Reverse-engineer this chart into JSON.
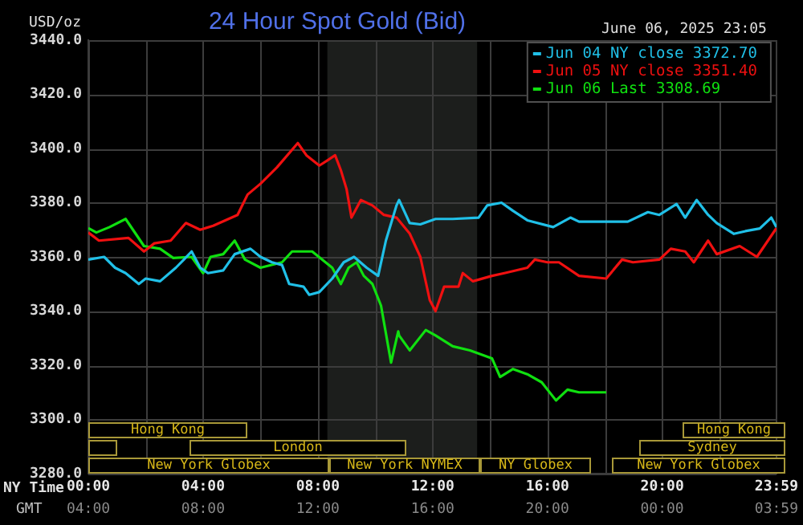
{
  "chart_data": {
    "type": "line",
    "title": "24 Hour Spot Gold (Bid)",
    "subtitle": "June 06, 2025 23:05",
    "ylabel": "USD/oz",
    "xlabel": "NY Time",
    "x2label": "GMT",
    "xlim": [
      0,
      23.98
    ],
    "ylim": [
      3280,
      3440
    ],
    "xticks": [
      {
        "value": 0,
        "label": "00:00"
      },
      {
        "value": 2,
        "label": null
      },
      {
        "value": 4,
        "label": "04:00"
      },
      {
        "value": 6,
        "label": null
      },
      {
        "value": 8,
        "label": "08:00"
      },
      {
        "value": 10,
        "label": null
      },
      {
        "value": 12,
        "label": "12:00"
      },
      {
        "value": 14,
        "label": null
      },
      {
        "value": 16,
        "label": "16:00"
      },
      {
        "value": 18,
        "label": null
      },
      {
        "value": 20,
        "label": "20:00"
      },
      {
        "value": 22,
        "label": null
      },
      {
        "value": 23.98,
        "label": "23:59"
      }
    ],
    "x2lim": [
      "2025-06-06T04:00",
      "2025-06-07T03:59"
    ],
    "x2ticks": [
      {
        "value": "2025-06-06T04:00",
        "label": "04:00"
      },
      {
        "value": "2025-06-06T08:00",
        "label": "08:00"
      },
      {
        "value": "2025-06-06T12:00",
        "label": "12:00"
      },
      {
        "value": "2025-06-06T16:00",
        "label": "16:00"
      },
      {
        "value": "2025-06-06T20:00",
        "label": "20:00"
      },
      {
        "value": "2025-06-07T00:00",
        "label": "00:00"
      },
      {
        "value": "2025-06-07T03:59",
        "label": "03:59"
      }
    ],
    "yticks": [
      {
        "value": 3280,
        "label": "3280.0"
      },
      {
        "value": 3300,
        "label": "3300.0"
      },
      {
        "value": 3320,
        "label": "3320.0"
      },
      {
        "value": 3340,
        "label": "3340.0"
      },
      {
        "value": 3360,
        "label": "3360.0"
      },
      {
        "value": 3380,
        "label": "3380.0"
      },
      {
        "value": 3400,
        "label": "3400.0"
      },
      {
        "value": 3420,
        "label": "3420.0"
      },
      {
        "value": 3440,
        "label": "3440.0"
      }
    ],
    "grid": true,
    "legend": "top right",
    "marker": "none",
    "line_style": "solid",
    "bands": [
      {
        "axis": "x",
        "from": 8.33,
        "to": 13.55,
        "label": null,
        "color": "#1c1e1c"
      }
    ],
    "annotations": [
      "Hong Kong",
      "Hong Kong",
      "London",
      "Sydney",
      "New York Globex",
      "New York NYMEX",
      "NY Globex",
      "New York Globex"
    ],
    "series": [
      {
        "name": "Jun 04 NY close 3372.70",
        "color": "#20c0e8",
        "x": [
          0,
          0.55,
          0.93,
          1.3,
          1.76,
          2,
          2.5,
          3.05,
          3.33,
          3.6,
          3.9,
          4.17,
          4.7,
          5.1,
          5.65,
          6,
          6.4,
          6.75,
          7,
          7.5,
          7.7,
          8.05,
          8.5,
          8.9,
          9.26,
          9.7,
          10.1,
          10.37,
          10.74,
          10.83,
          11.2,
          11.57,
          12.1,
          12.7,
          13.6,
          13.9,
          14.4,
          14.8,
          15.3,
          16.2,
          16.8,
          17.1,
          18.05,
          18.8,
          19.5,
          19.9,
          20.5,
          20.8,
          21.2,
          21.6,
          21.9,
          22.5,
          22.9,
          23.4,
          23.8,
          23.98
        ],
        "values": [
          3359,
          3360,
          3356,
          3354,
          3350,
          3352,
          3351,
          3356,
          3359,
          3362,
          3356,
          3354,
          3355,
          3361,
          3363,
          3360,
          3358,
          3357,
          3350,
          3349,
          3346,
          3347,
          3352,
          3358,
          3360,
          3356,
          3353,
          3366,
          3379,
          3381,
          3372.5,
          3372,
          3374,
          3374,
          3374.5,
          3379,
          3380,
          3377,
          3373.5,
          3371,
          3374.5,
          3373,
          3373,
          3373,
          3376.5,
          3375.5,
          3379.5,
          3374.5,
          3381,
          3375.5,
          3372.5,
          3368.5,
          3369.5,
          3370.5,
          3374.5,
          3371
        ]
      },
      {
        "name": "Jun 05 NY close 3351.40",
        "color": "#f01010",
        "x": [
          0,
          0.37,
          1.4,
          1.94,
          2.3,
          2.87,
          3.4,
          3.9,
          4.35,
          5.2,
          5.55,
          6,
          6.57,
          7.3,
          7.6,
          8.05,
          8.33,
          8.6,
          8.8,
          9,
          9.17,
          9.5,
          9.9,
          10.3,
          10.74,
          11.2,
          11.57,
          11.9,
          12.1,
          12.4,
          12.9,
          13.05,
          13.4,
          14.07,
          14.5,
          15.3,
          15.56,
          16,
          16.4,
          17.1,
          18.05,
          18.6,
          18.98,
          19.9,
          20.3,
          20.8,
          21.1,
          21.6,
          21.9,
          22.7,
          23.3,
          23.98
        ],
        "values": [
          3369,
          3366,
          3367,
          3362,
          3365,
          3366,
          3372.5,
          3370,
          3371.5,
          3375.5,
          3383,
          3387,
          3393,
          3402,
          3397.5,
          3393.7,
          3395.6,
          3397.5,
          3392,
          3385,
          3374.5,
          3381,
          3379,
          3375.5,
          3374.5,
          3368.6,
          3360,
          3344,
          3340,
          3349,
          3349,
          3354,
          3351,
          3353,
          3354,
          3356,
          3359,
          3358,
          3358,
          3353,
          3352,
          3359,
          3358,
          3359,
          3363,
          3362,
          3358,
          3366,
          3361,
          3364,
          3360,
          3370.6
        ]
      },
      {
        "name": "Jun 06 Last 3308.69",
        "color": "#10e010",
        "x": [
          0,
          0.28,
          0.74,
          1.3,
          1.94,
          2.5,
          2.96,
          3.6,
          4,
          4.26,
          4.7,
          5.1,
          5.46,
          6,
          6.75,
          7.1,
          7.8,
          8.5,
          8.8,
          9.07,
          9.35,
          9.6,
          9.9,
          10.2,
          10.55,
          10.8,
          10.83,
          11.2,
          11.76,
          12.1,
          12.7,
          13.3,
          14.07,
          14.35,
          14.8,
          15.3,
          15.8,
          16.3,
          16.7,
          17.1,
          18.05
        ],
        "values": [
          3370.6,
          3369,
          3371,
          3374,
          3364,
          3363,
          3359.6,
          3360,
          3354,
          3360,
          3361,
          3366,
          3359,
          3356,
          3358,
          3362,
          3362,
          3356,
          3350,
          3356,
          3358,
          3353,
          3350,
          3342,
          3321,
          3332.5,
          3331,
          3325.5,
          3333,
          3331,
          3327,
          3325.5,
          3322.5,
          3315.7,
          3318.6,
          3316.7,
          3313.7,
          3307,
          3311,
          3310,
          3310
        ]
      }
    ]
  }
}
